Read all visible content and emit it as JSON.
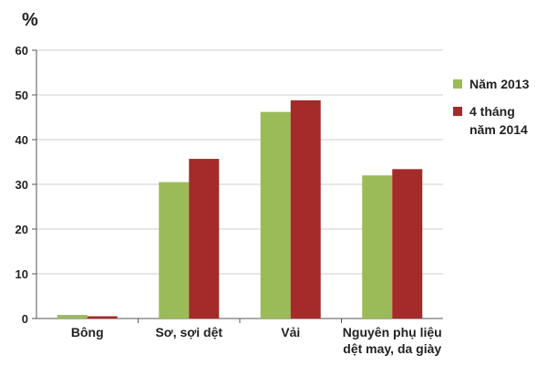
{
  "chart_data": {
    "type": "bar",
    "unit_label": "%",
    "categories": [
      [
        "Bông"
      ],
      [
        "Sơ, sợi dệt"
      ],
      [
        "Vải"
      ],
      [
        "Nguyên phụ liệu",
        "dệt may, da giày"
      ]
    ],
    "series": [
      {
        "name": "Năm 2013",
        "name_lines": [
          "Năm 2013"
        ],
        "color": "#9bbb59",
        "values": [
          0.8,
          30.5,
          46.2,
          32.0
        ]
      },
      {
        "name": "4 tháng năm 2014",
        "name_lines": [
          "4 tháng",
          "năm 2014"
        ],
        "color": "#a52a2a",
        "values": [
          0.5,
          35.7,
          48.8,
          33.4
        ]
      }
    ],
    "ylim": [
      0,
      60
    ],
    "yticks": [
      0,
      10,
      20,
      30,
      40,
      50,
      60
    ],
    "grid": true,
    "legend_position": "right"
  }
}
